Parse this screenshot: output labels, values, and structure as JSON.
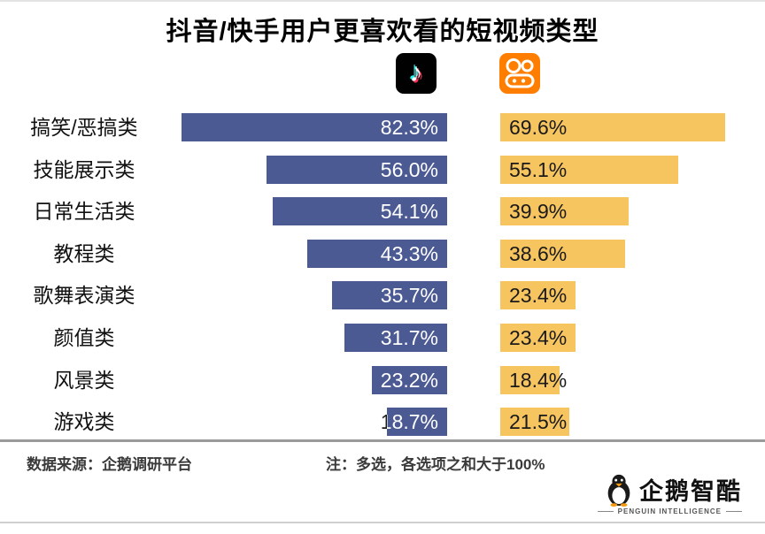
{
  "title": "抖音/快手用户更喜欢看的短视频类型",
  "legend": {
    "douyin_name": "抖音",
    "kuaishou_name": "快手",
    "douyin_glyph": "♪"
  },
  "colors": {
    "douyin_bar": "#4c5a94",
    "kuaishou_bar": "#f7c55f",
    "douyin_icon_bg": "#010101",
    "kuaishou_icon_bg": "#ff7e00",
    "douyin_value_text": "#ffffff",
    "kuaishou_value_text": "#1a1a1a"
  },
  "chart_data": {
    "type": "bar",
    "orientation": "horizontal",
    "title": "抖音/快手用户更喜欢看的短视频类型",
    "categories": [
      "搞笑/恶搞类",
      "技能展示类",
      "日常生活类",
      "教程类",
      "歌舞表演类",
      "颜值类",
      "风景类",
      "游戏类"
    ],
    "series": [
      {
        "name": "抖音",
        "values": [
          82.3,
          56.0,
          54.1,
          43.3,
          35.7,
          31.7,
          23.2,
          18.7
        ]
      },
      {
        "name": "快手",
        "values": [
          69.6,
          55.1,
          39.9,
          38.6,
          23.4,
          23.4,
          18.4,
          21.5
        ]
      }
    ],
    "value_suffix": "%",
    "xlim": [
      0,
      100
    ],
    "grid": false,
    "legend_position": "top-icons",
    "note": "注：多选，各选项之和大于100%"
  },
  "footer": {
    "source": "数据来源：企鹅调研平台",
    "note": "注：多选，各选项之和大于100%",
    "brand": "企鹅智酷",
    "brand_sub": "PENGUIN INTELLIGENCE"
  }
}
